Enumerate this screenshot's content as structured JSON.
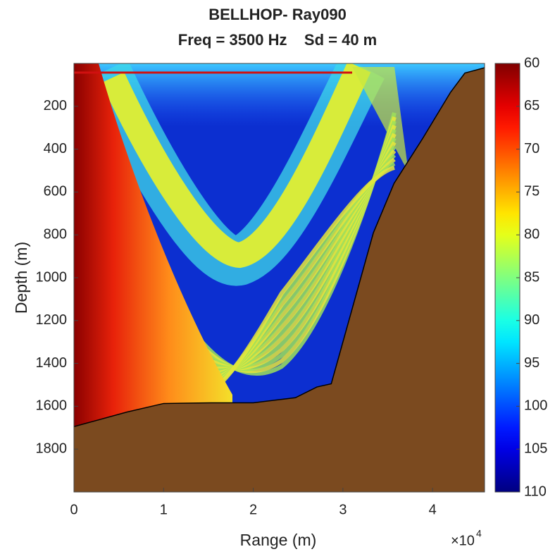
{
  "chart_data": {
    "type": "heatmap",
    "title": "BELLHOP- Ray090",
    "subtitle": "Freq = 3500 Hz    Sd = 40 m",
    "x_label": "Range (m)",
    "y_label": "Depth (m)",
    "x_multiplier": {
      "base": "×10",
      "power": "4"
    },
    "xlim": [
      0,
      45800
    ],
    "xticks": [
      {
        "value": 0,
        "label": "0"
      },
      {
        "value": 10000,
        "label": "1"
      },
      {
        "value": 20000,
        "label": "2"
      },
      {
        "value": 30000,
        "label": "3"
      },
      {
        "value": 40000,
        "label": "4"
      }
    ],
    "ylim": [
      0,
      2000
    ],
    "y_reversed": true,
    "yticks": [
      200,
      400,
      600,
      800,
      1000,
      1200,
      1400,
      1600,
      1800
    ],
    "colorbar": {
      "lim": [
        60,
        110
      ],
      "ticks": [
        60,
        65,
        70,
        75,
        80,
        85,
        90,
        95,
        100,
        105,
        110
      ],
      "colormap": "jet",
      "reversed": true
    },
    "seabed": {
      "color": "#7b4a1f",
      "x": [
        0,
        5900,
        10000,
        15300,
        20000,
        24700,
        27100,
        28700,
        31000,
        33400,
        35700,
        38900,
        42000,
        43600,
        45800
      ],
      "y": [
        1695,
        1627,
        1587,
        1584,
        1584,
        1560,
        1510,
        1495,
        1150,
        790,
        560,
        350,
        135,
        45,
        20
      ]
    }
  }
}
